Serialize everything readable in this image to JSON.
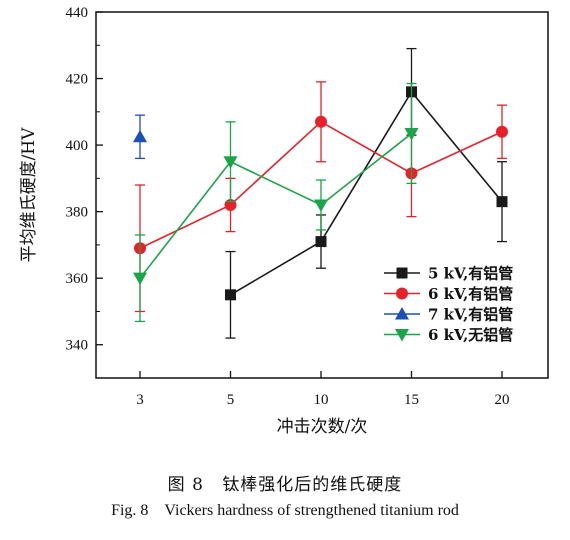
{
  "chart_data": {
    "type": "line",
    "x": [
      "3",
      "5",
      "10",
      "15",
      "20"
    ],
    "xlabel": "冲击次数/次",
    "ylabel": "平均维氏硬度/HV",
    "ylim": [
      330,
      440
    ],
    "yticks": [
      340,
      360,
      380,
      400,
      420,
      440
    ],
    "legend_position": "bottom-right",
    "grid": false,
    "series": [
      {
        "name": "5 kV,有铝管",
        "color": "#1a1a1a",
        "marker": "square",
        "values": [
          null,
          355,
          371,
          416,
          383
        ],
        "err": [
          null,
          13,
          8,
          13,
          12
        ]
      },
      {
        "name": "6 kV,有铝管",
        "color": "#e8202a",
        "marker": "circle",
        "values": [
          369,
          382,
          407,
          391.5,
          404
        ],
        "err": [
          19,
          8,
          12,
          13,
          8
        ]
      },
      {
        "name": "7 kV,有铝管",
        "color": "#1f4fb5",
        "marker": "triangle-up",
        "values": [
          402.5,
          null,
          null,
          null,
          null
        ],
        "err": [
          6.5,
          null,
          null,
          null,
          null
        ]
      },
      {
        "name": "6 kV,无铝管",
        "color": "#1aa548",
        "marker": "triangle-down",
        "values": [
          360,
          395,
          382,
          403.5,
          null
        ],
        "err": [
          13,
          12,
          7.5,
          15,
          null
        ]
      }
    ]
  },
  "caption": {
    "cn_label": "图 8",
    "cn_text": "钛棒强化后的维氏硬度",
    "en_label": "Fig. 8",
    "en_text": "Vickers hardness of strengthened titanium rod"
  }
}
